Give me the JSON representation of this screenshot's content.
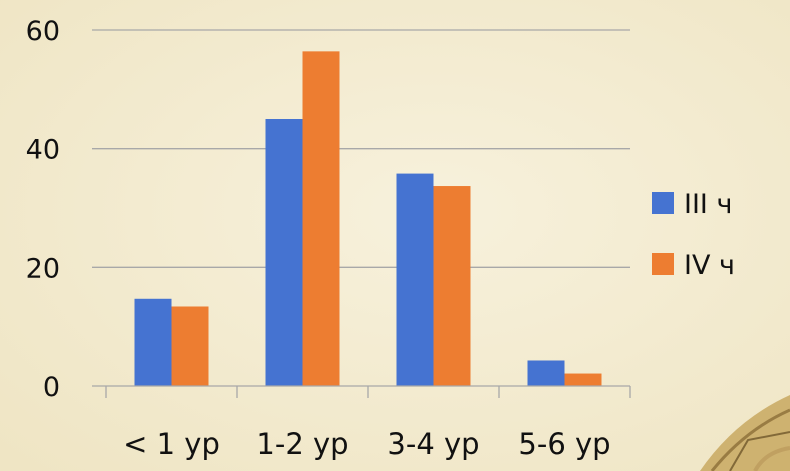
{
  "colors": {
    "background": "#f4edd3",
    "series_iii": "#4573d1",
    "series_iv": "#ed7d31",
    "gridline": "#a8a8a8",
    "ornament": "#9b7b3a"
  },
  "chart_data": {
    "type": "bar",
    "categories": [
      "< 1 ур",
      "1-2 ур",
      "3-4 ур",
      "5-6 ур"
    ],
    "series": [
      {
        "name": "III ч",
        "values": [
          14.7,
          45.0,
          35.8,
          4.3
        ]
      },
      {
        "name": "IV ч",
        "values": [
          13.4,
          56.4,
          33.7,
          2.1
        ]
      }
    ],
    "yticks": [
      "0",
      "20",
      "40",
      "60"
    ],
    "ylim": [
      0,
      60
    ],
    "grid": true,
    "legend_position": "right"
  }
}
